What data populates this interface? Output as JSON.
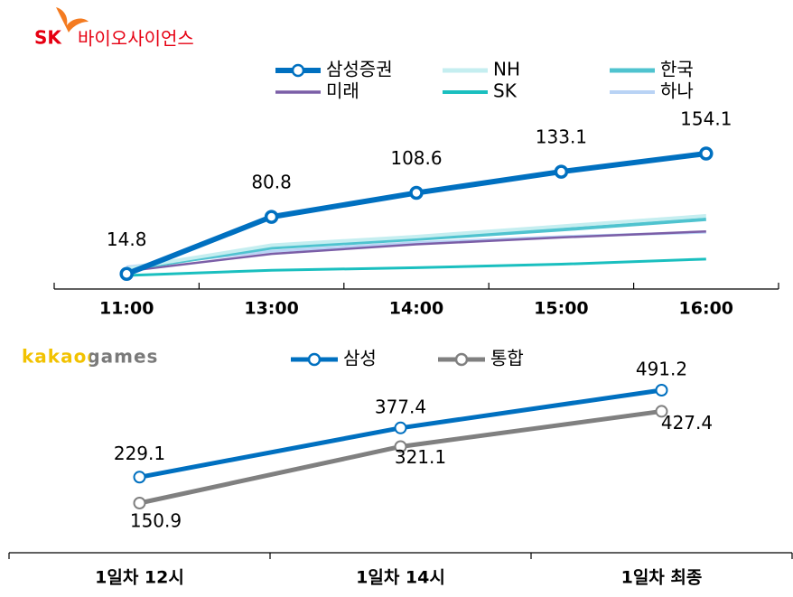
{
  "chart_data": [
    {
      "type": "line",
      "title": "SK",
      "subtitle": "바이오사이언스",
      "categories": [
        "11:00",
        "13:00",
        "14:00",
        "15:00",
        "16:00"
      ],
      "series": [
        {
          "name": "삼성증권",
          "color": "#0070c0",
          "values": [
            14.8,
            80.8,
            108.6,
            133.1,
            154.1
          ]
        },
        {
          "name": "NH",
          "color": "#c5eef0",
          "values": [
            21,
            48,
            58,
            70,
            82
          ]
        },
        {
          "name": "한국",
          "color": "#4fc3cf",
          "values": [
            20,
            45,
            55,
            66,
            78
          ]
        },
        {
          "name": "미래",
          "color": "#7b5ea7",
          "values": [
            18,
            38,
            49,
            57,
            64
          ]
        },
        {
          "name": "SK",
          "color": "#1abfbf",
          "values": [
            13,
            19,
            22,
            26,
            32
          ]
        },
        {
          "name": "하나",
          "color": "#b9d3f5",
          "values": [
            23,
            41,
            51,
            58,
            63
          ]
        }
      ]
    },
    {
      "type": "line",
      "title": "kakaogames",
      "categories": [
        "1일차 12시",
        "1일차 14시",
        "1일차 최종"
      ],
      "series": [
        {
          "name": "삼성",
          "color": "#0070c0",
          "values": [
            229.1,
            377.4,
            491.2
          ]
        },
        {
          "name": "통합",
          "color": "#808080",
          "values": [
            150.9,
            321.1,
            427.4
          ]
        }
      ]
    }
  ]
}
